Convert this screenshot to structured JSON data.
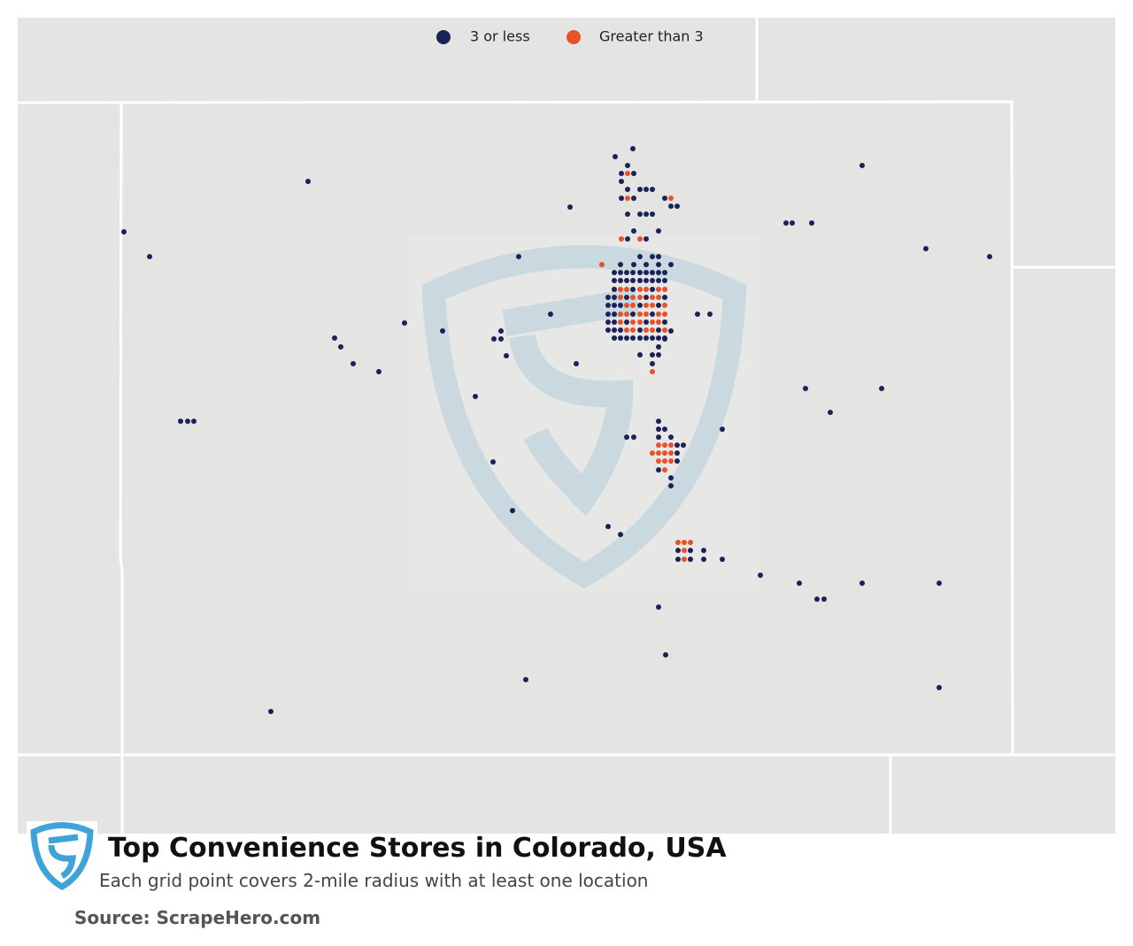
{
  "legend": [
    {
      "label": "3 or less",
      "color": "#1b2259"
    },
    {
      "label": "Greater than 3",
      "color": "#e8512a"
    }
  ],
  "title": "Top Convenience Stores in Colorado, USA",
  "subtitle": "Each grid point covers 2-mile radius with at least one location",
  "source": "Source: ScrapeHero.com"
}
